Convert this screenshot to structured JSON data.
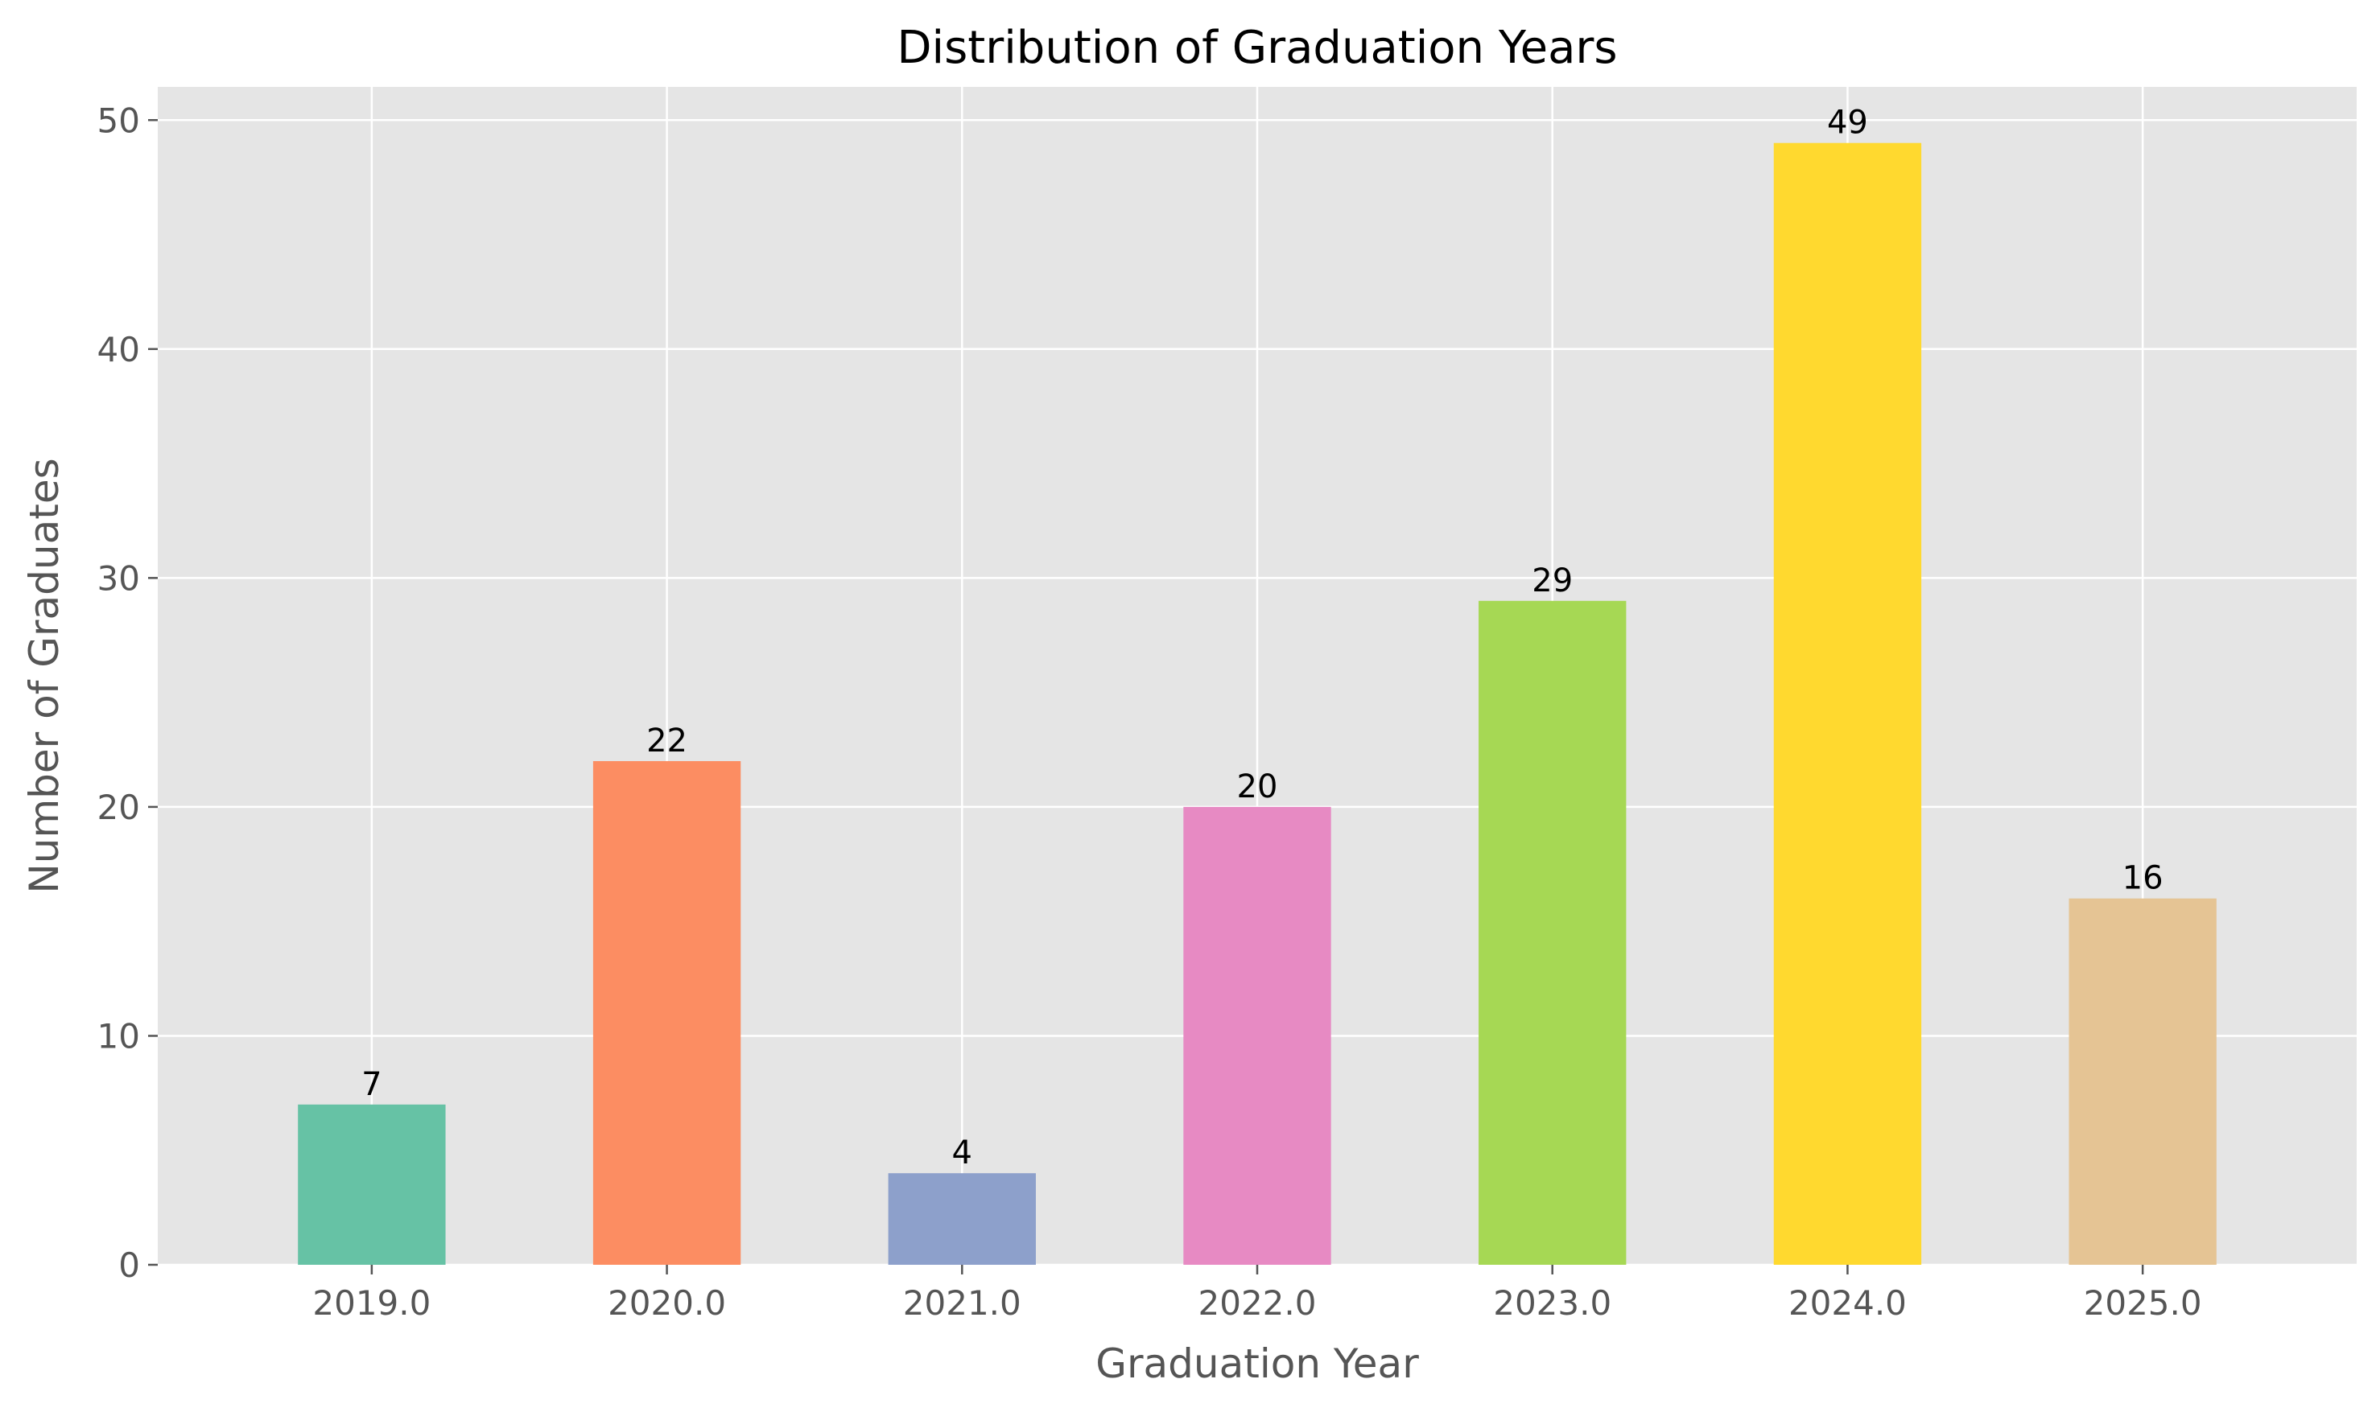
{
  "chart_data": {
    "type": "bar",
    "title": "Distribution of Graduation Years",
    "xlabel": "Graduation Year",
    "ylabel": "Number of Graduates",
    "categories": [
      "2019.0",
      "2020.0",
      "2021.0",
      "2022.0",
      "2023.0",
      "2024.0",
      "2025.0"
    ],
    "values": [
      7,
      22,
      4,
      20,
      29,
      49,
      16
    ],
    "colors": [
      "#66c2a5",
      "#fc8d62",
      "#8da0cb",
      "#e78ac3",
      "#a6d854",
      "#ffd92f",
      "#e5c494"
    ],
    "ylim": [
      0,
      51.45
    ],
    "yticks": [
      0,
      10,
      20,
      30,
      40,
      50
    ],
    "grid": true,
    "background": "#e5e5e5",
    "data_labels": true
  }
}
